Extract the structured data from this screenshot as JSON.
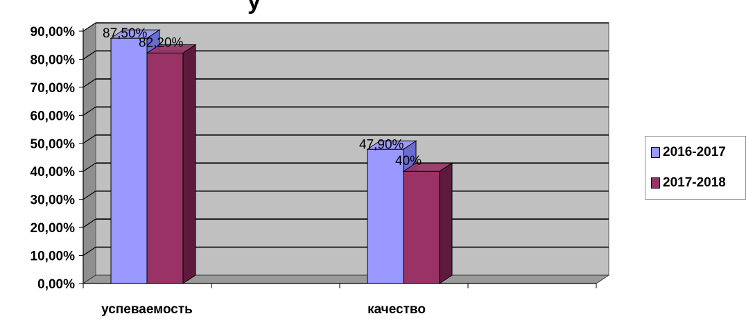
{
  "page_top_partial_text": "у",
  "chart_data": {
    "type": "bar",
    "title": "",
    "xlabel": "",
    "ylabel": "",
    "categories": [
      "успеваемость",
      "качество"
    ],
    "series": [
      {
        "name": "2016-2017",
        "values": [
          87.5,
          47.9
        ],
        "labels": [
          "87,50%",
          "47,90%"
        ],
        "color": "#9999ff",
        "side_color": "#6b6bd0"
      },
      {
        "name": "2017-2018",
        "values": [
          82.2,
          40.0
        ],
        "labels": [
          "82,20%",
          "40%"
        ],
        "color": "#993366",
        "side_color": "#5e1a3e"
      }
    ],
    "ylim": [
      0,
      90
    ],
    "y_ticks": [
      0,
      10,
      20,
      30,
      40,
      50,
      60,
      70,
      80,
      90
    ],
    "y_tick_labels": [
      "0,00%",
      "10,00%",
      "20,00%",
      "30,00%",
      "40,00%",
      "50,00%",
      "60,00%",
      "70,00%",
      "80,00%",
      "90,00%"
    ],
    "grid": true,
    "legend_position": "right",
    "plot_background": "#c0c0c0",
    "style": "3d-column"
  }
}
